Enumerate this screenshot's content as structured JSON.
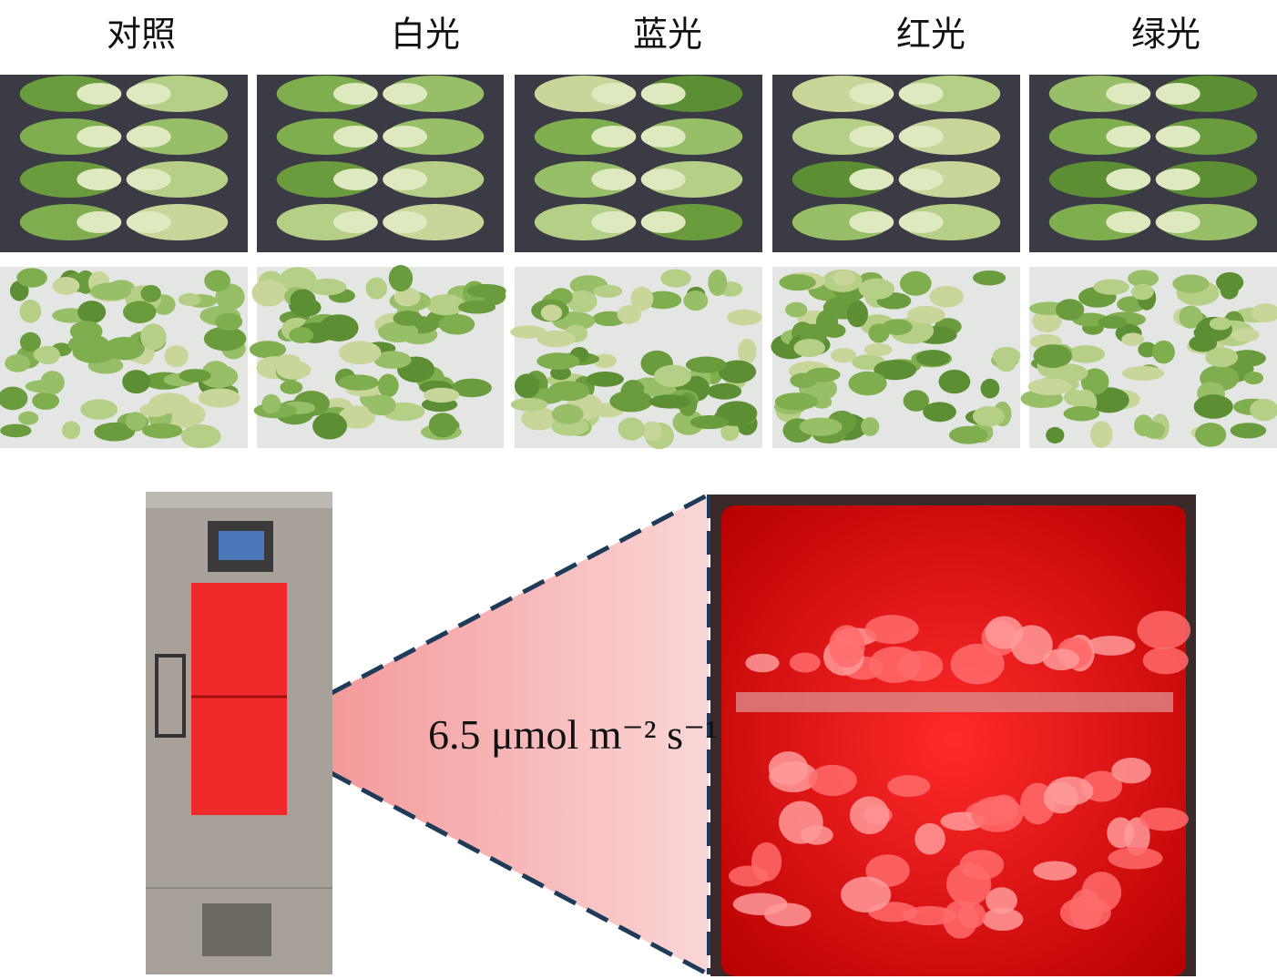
{
  "header": {
    "labels": [
      "对照",
      "白光",
      "蓝光",
      "红光",
      "绿光"
    ]
  },
  "annotation": "6.5 μmol m⁻² s⁻¹"
}
